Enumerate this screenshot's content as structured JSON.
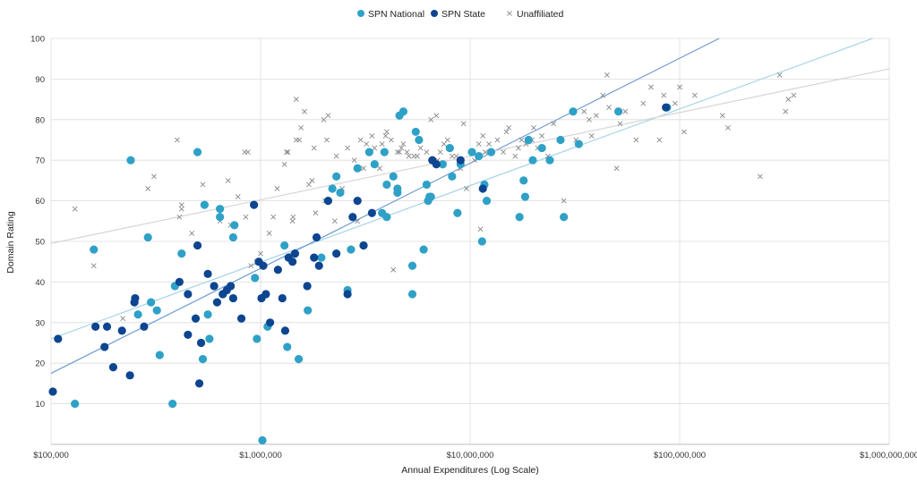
{
  "chart_data": {
    "type": "scatter",
    "xlabel": "Annual Expenditures (Log Scale)",
    "ylabel": "Domain Rating",
    "xscale": "log",
    "xlim": [
      100000,
      1000000000
    ],
    "ylim": [
      0,
      100
    ],
    "x_tick_labels": [
      "$100,000",
      "$1,000,000",
      "$10,000,000",
      "$100,000,000",
      "$1,000,000,000"
    ],
    "y_ticks": [
      10,
      20,
      30,
      40,
      50,
      60,
      70,
      80,
      90,
      100
    ],
    "grid": true,
    "legend_position": "top-center",
    "series": [
      {
        "name": "SPN National",
        "marker": "circle",
        "color": "#2fa1c7",
        "trendline": {
          "y_at_xmin": 26,
          "y_at_xmax": 101.5,
          "color": "#a9d5e8"
        },
        "points": [
          [
            130000,
            10
          ],
          [
            160000,
            48
          ],
          [
            240000,
            70
          ],
          [
            260000,
            32
          ],
          [
            290000,
            51
          ],
          [
            300000,
            35
          ],
          [
            320000,
            33
          ],
          [
            330000,
            22
          ],
          [
            380000,
            10
          ],
          [
            390000,
            39
          ],
          [
            420000,
            47
          ],
          [
            500000,
            72
          ],
          [
            530000,
            21
          ],
          [
            540000,
            59
          ],
          [
            560000,
            32
          ],
          [
            570000,
            26
          ],
          [
            640000,
            58
          ],
          [
            640000,
            56
          ],
          [
            660000,
            37
          ],
          [
            740000,
            51
          ],
          [
            750000,
            54
          ],
          [
            940000,
            41
          ],
          [
            960000,
            26
          ],
          [
            1020000,
            1
          ],
          [
            1080000,
            29
          ],
          [
            1300000,
            49
          ],
          [
            1340000,
            24
          ],
          [
            1520000,
            21
          ],
          [
            1680000,
            33
          ],
          [
            1950000,
            46
          ],
          [
            2200000,
            63
          ],
          [
            2300000,
            66
          ],
          [
            2400000,
            62
          ],
          [
            2600000,
            38
          ],
          [
            2700000,
            48
          ],
          [
            2900000,
            68
          ],
          [
            3100000,
            49
          ],
          [
            3300000,
            72
          ],
          [
            3500000,
            69
          ],
          [
            3800000,
            57
          ],
          [
            3900000,
            72
          ],
          [
            4000000,
            56
          ],
          [
            4000000,
            64
          ],
          [
            4300000,
            66
          ],
          [
            4500000,
            63
          ],
          [
            4500000,
            62
          ],
          [
            4600000,
            81
          ],
          [
            4800000,
            82
          ],
          [
            5300000,
            44
          ],
          [
            5300000,
            37
          ],
          [
            5500000,
            77
          ],
          [
            5700000,
            75
          ],
          [
            6000000,
            48
          ],
          [
            6200000,
            64
          ],
          [
            6300000,
            60
          ],
          [
            6400000,
            61
          ],
          [
            6500000,
            61
          ],
          [
            7400000,
            69
          ],
          [
            8000000,
            73
          ],
          [
            8200000,
            66
          ],
          [
            8700000,
            57
          ],
          [
            9000000,
            69
          ],
          [
            10200000,
            72
          ],
          [
            11000000,
            71
          ],
          [
            11400000,
            50
          ],
          [
            11700000,
            64
          ],
          [
            12000000,
            60
          ],
          [
            12600000,
            72
          ],
          [
            17200000,
            56
          ],
          [
            18000000,
            65
          ],
          [
            18300000,
            61
          ],
          [
            19000000,
            75
          ],
          [
            19900000,
            70
          ],
          [
            22000000,
            73
          ],
          [
            24000000,
            70
          ],
          [
            27000000,
            75
          ],
          [
            28000000,
            56
          ],
          [
            31000000,
            82
          ],
          [
            33000000,
            74
          ],
          [
            51000000,
            82
          ],
          [
            87000000,
            83
          ]
        ]
      },
      {
        "name": "SPN State",
        "marker": "circle",
        "color": "#0d4590",
        "trendline": {
          "y_at_xmin": 17.5,
          "y_at_xmax": 121,
          "color": "#6e9bd0"
        },
        "points": [
          [
            102000,
            13
          ],
          [
            108000,
            26
          ],
          [
            163000,
            29
          ],
          [
            180000,
            24
          ],
          [
            185000,
            29
          ],
          [
            198000,
            19
          ],
          [
            218000,
            28
          ],
          [
            238000,
            17
          ],
          [
            250000,
            35
          ],
          [
            252000,
            36
          ],
          [
            278000,
            29
          ],
          [
            410000,
            40
          ],
          [
            450000,
            37
          ],
          [
            450000,
            27
          ],
          [
            490000,
            31
          ],
          [
            500000,
            49
          ],
          [
            510000,
            15
          ],
          [
            520000,
            25
          ],
          [
            560000,
            42
          ],
          [
            600000,
            39
          ],
          [
            620000,
            35
          ],
          [
            660000,
            37
          ],
          [
            690000,
            38
          ],
          [
            720000,
            39
          ],
          [
            740000,
            36
          ],
          [
            810000,
            31
          ],
          [
            930000,
            59
          ],
          [
            980000,
            45
          ],
          [
            1010000,
            36
          ],
          [
            1030000,
            44
          ],
          [
            1060000,
            37
          ],
          [
            1110000,
            30
          ],
          [
            1210000,
            43
          ],
          [
            1270000,
            36
          ],
          [
            1310000,
            28
          ],
          [
            1360000,
            46
          ],
          [
            1420000,
            45
          ],
          [
            1460000,
            47
          ],
          [
            1670000,
            39
          ],
          [
            1800000,
            46
          ],
          [
            1850000,
            51
          ],
          [
            1900000,
            44
          ],
          [
            2100000,
            60
          ],
          [
            2300000,
            47
          ],
          [
            2600000,
            37
          ],
          [
            2750000,
            56
          ],
          [
            2900000,
            60
          ],
          [
            3100000,
            49
          ],
          [
            3400000,
            57
          ],
          [
            6600000,
            70
          ],
          [
            6900000,
            69
          ],
          [
            9000000,
            70
          ],
          [
            11500000,
            63
          ],
          [
            86000000,
            83
          ]
        ]
      },
      {
        "name": "Unaffiliated",
        "marker": "x",
        "color": "#888888",
        "trendline": {
          "y_at_xmin": 49.5,
          "y_at_xmax": 92.5,
          "color": "#d6d6d6"
        },
        "points": [
          [
            130000,
            58
          ],
          [
            160000,
            44
          ],
          [
            220000,
            31
          ],
          [
            290000,
            63
          ],
          [
            310000,
            66
          ],
          [
            400000,
            75
          ],
          [
            410000,
            56
          ],
          [
            420000,
            58
          ],
          [
            420000,
            59
          ],
          [
            470000,
            52
          ],
          [
            530000,
            64
          ],
          [
            640000,
            55
          ],
          [
            700000,
            65
          ],
          [
            720000,
            54
          ],
          [
            780000,
            61
          ],
          [
            840000,
            72
          ],
          [
            850000,
            56
          ],
          [
            870000,
            72
          ],
          [
            900000,
            44
          ],
          [
            960000,
            45
          ],
          [
            1000000,
            47
          ],
          [
            1100000,
            52
          ],
          [
            1150000,
            56
          ],
          [
            1200000,
            63
          ],
          [
            1300000,
            69
          ],
          [
            1330000,
            72
          ],
          [
            1350000,
            72
          ],
          [
            1420000,
            55
          ],
          [
            1430000,
            56
          ],
          [
            1480000,
            85
          ],
          [
            1480000,
            75
          ],
          [
            1530000,
            75
          ],
          [
            1560000,
            78
          ],
          [
            1620000,
            82
          ],
          [
            1700000,
            64
          ],
          [
            1760000,
            65
          ],
          [
            1800000,
            73
          ],
          [
            1830000,
            57
          ],
          [
            2000000,
            80
          ],
          [
            2030000,
            60
          ],
          [
            2070000,
            75
          ],
          [
            2100000,
            81
          ],
          [
            2260000,
            55
          ],
          [
            2300000,
            71
          ],
          [
            2450000,
            63
          ],
          [
            2600000,
            73
          ],
          [
            2800000,
            70
          ],
          [
            2900000,
            55
          ],
          [
            3000000,
            75
          ],
          [
            3100000,
            68
          ],
          [
            3200000,
            74
          ],
          [
            3300000,
            72
          ],
          [
            3400000,
            76
          ],
          [
            3500000,
            73
          ],
          [
            3700000,
            68
          ],
          [
            3800000,
            74
          ],
          [
            3950000,
            76
          ],
          [
            4000000,
            77
          ],
          [
            4200000,
            75
          ],
          [
            4300000,
            43
          ],
          [
            4500000,
            72
          ],
          [
            4600000,
            72
          ],
          [
            4700000,
            73
          ],
          [
            4800000,
            74
          ],
          [
            5000000,
            72
          ],
          [
            5100000,
            71
          ],
          [
            5400000,
            71
          ],
          [
            5600000,
            71
          ],
          [
            5800000,
            73
          ],
          [
            6200000,
            72
          ],
          [
            6500000,
            80
          ],
          [
            6900000,
            81
          ],
          [
            7000000,
            70
          ],
          [
            7200000,
            72
          ],
          [
            7500000,
            74
          ],
          [
            7800000,
            75
          ],
          [
            8200000,
            71
          ],
          [
            8600000,
            71
          ],
          [
            9000000,
            68
          ],
          [
            9300000,
            79
          ],
          [
            9600000,
            63
          ],
          [
            10500000,
            70
          ],
          [
            11000000,
            74
          ],
          [
            11200000,
            53
          ],
          [
            11500000,
            76
          ],
          [
            11800000,
            72
          ],
          [
            12300000,
            74
          ],
          [
            13500000,
            75
          ],
          [
            14400000,
            72
          ],
          [
            14900000,
            77
          ],
          [
            15300000,
            78
          ],
          [
            16400000,
            71
          ],
          [
            17000000,
            73
          ],
          [
            17600000,
            75
          ],
          [
            18500000,
            74
          ],
          [
            19700000,
            75
          ],
          [
            20100000,
            78
          ],
          [
            21000000,
            73
          ],
          [
            22000000,
            76
          ],
          [
            23500000,
            71
          ],
          [
            25000000,
            79
          ],
          [
            28000000,
            60
          ],
          [
            32000000,
            75
          ],
          [
            35000000,
            82
          ],
          [
            37000000,
            80
          ],
          [
            38000000,
            76
          ],
          [
            40000000,
            81
          ],
          [
            43000000,
            86
          ],
          [
            45000000,
            91
          ],
          [
            46000000,
            83
          ],
          [
            50000000,
            68
          ],
          [
            52000000,
            79
          ],
          [
            55000000,
            82
          ],
          [
            62000000,
            75
          ],
          [
            67000000,
            84
          ],
          [
            73000000,
            88
          ],
          [
            80000000,
            75
          ],
          [
            84000000,
            86
          ],
          [
            95000000,
            84
          ],
          [
            100000000,
            88
          ],
          [
            105000000,
            77
          ],
          [
            118000000,
            86
          ],
          [
            160000000,
            81
          ],
          [
            170000000,
            78
          ],
          [
            242000000,
            66
          ],
          [
            300000000,
            91
          ],
          [
            320000000,
            82
          ],
          [
            330000000,
            85
          ],
          [
            350000000,
            86
          ]
        ]
      }
    ]
  }
}
